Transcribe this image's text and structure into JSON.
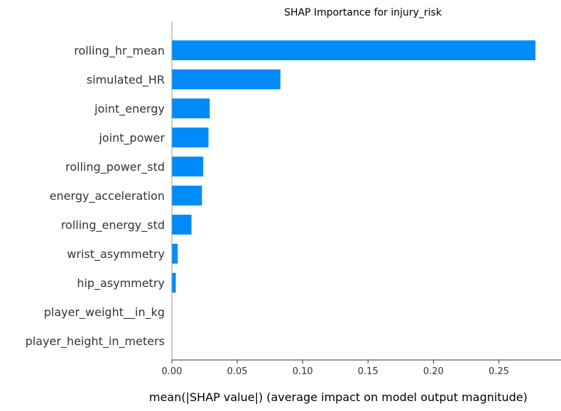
{
  "chart_data": {
    "type": "bar",
    "orientation": "horizontal",
    "title": "SHAP Importance for injury_risk",
    "xlabel": "mean(|SHAP value|) (average impact on model output magnitude)",
    "ylabel": "",
    "categories": [
      "rolling_hr_mean",
      "simulated_HR",
      "joint_energy",
      "joint_power",
      "rolling_power_std",
      "energy_acceleration",
      "rolling_energy_std",
      "wrist_asymmetry",
      "hip_asymmetry",
      "player_weight__in_kg",
      "player_height_in_meters"
    ],
    "values": [
      0.278,
      0.083,
      0.029,
      0.028,
      0.024,
      0.023,
      0.015,
      0.0045,
      0.003,
      0.0,
      0.0
    ],
    "xlim": [
      0,
      0.285
    ],
    "xticks": [
      0.0,
      0.05,
      0.1,
      0.15,
      0.2,
      0.25
    ],
    "xtick_labels": [
      "0.00",
      "0.05",
      "0.10",
      "0.15",
      "0.20",
      "0.25"
    ],
    "bar_color": "#008bfb",
    "grid": false,
    "legend": "none"
  }
}
